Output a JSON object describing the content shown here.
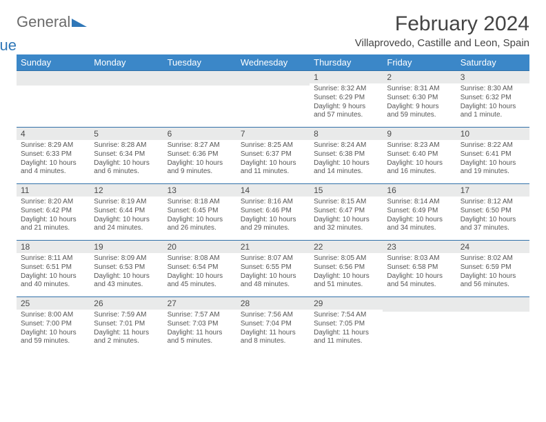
{
  "brand": {
    "part1": "General",
    "part2": "Blue"
  },
  "title": "February 2024",
  "location": "Villaprovedo, Castille and Leon, Spain",
  "colors": {
    "header_bg": "#3b87c8",
    "header_text": "#ffffff",
    "daynum_bg": "#e9eaea",
    "rule": "#2f6fa8",
    "body_text": "#555555",
    "title_text": "#444444",
    "brand_gray": "#6b6b6b",
    "brand_blue": "#2f77b8",
    "page_bg": "#ffffff"
  },
  "weekdays": [
    "Sunday",
    "Monday",
    "Tuesday",
    "Wednesday",
    "Thursday",
    "Friday",
    "Saturday"
  ],
  "weeks": [
    [
      null,
      null,
      null,
      null,
      {
        "n": "1",
        "sr": "Sunrise: 8:32 AM",
        "ss": "Sunset: 6:29 PM",
        "dl": "Daylight: 9 hours and 57 minutes."
      },
      {
        "n": "2",
        "sr": "Sunrise: 8:31 AM",
        "ss": "Sunset: 6:30 PM",
        "dl": "Daylight: 9 hours and 59 minutes."
      },
      {
        "n": "3",
        "sr": "Sunrise: 8:30 AM",
        "ss": "Sunset: 6:32 PM",
        "dl": "Daylight: 10 hours and 1 minute."
      }
    ],
    [
      {
        "n": "4",
        "sr": "Sunrise: 8:29 AM",
        "ss": "Sunset: 6:33 PM",
        "dl": "Daylight: 10 hours and 4 minutes."
      },
      {
        "n": "5",
        "sr": "Sunrise: 8:28 AM",
        "ss": "Sunset: 6:34 PM",
        "dl": "Daylight: 10 hours and 6 minutes."
      },
      {
        "n": "6",
        "sr": "Sunrise: 8:27 AM",
        "ss": "Sunset: 6:36 PM",
        "dl": "Daylight: 10 hours and 9 minutes."
      },
      {
        "n": "7",
        "sr": "Sunrise: 8:25 AM",
        "ss": "Sunset: 6:37 PM",
        "dl": "Daylight: 10 hours and 11 minutes."
      },
      {
        "n": "8",
        "sr": "Sunrise: 8:24 AM",
        "ss": "Sunset: 6:38 PM",
        "dl": "Daylight: 10 hours and 14 minutes."
      },
      {
        "n": "9",
        "sr": "Sunrise: 8:23 AM",
        "ss": "Sunset: 6:40 PM",
        "dl": "Daylight: 10 hours and 16 minutes."
      },
      {
        "n": "10",
        "sr": "Sunrise: 8:22 AM",
        "ss": "Sunset: 6:41 PM",
        "dl": "Daylight: 10 hours and 19 minutes."
      }
    ],
    [
      {
        "n": "11",
        "sr": "Sunrise: 8:20 AM",
        "ss": "Sunset: 6:42 PM",
        "dl": "Daylight: 10 hours and 21 minutes."
      },
      {
        "n": "12",
        "sr": "Sunrise: 8:19 AM",
        "ss": "Sunset: 6:44 PM",
        "dl": "Daylight: 10 hours and 24 minutes."
      },
      {
        "n": "13",
        "sr": "Sunrise: 8:18 AM",
        "ss": "Sunset: 6:45 PM",
        "dl": "Daylight: 10 hours and 26 minutes."
      },
      {
        "n": "14",
        "sr": "Sunrise: 8:16 AM",
        "ss": "Sunset: 6:46 PM",
        "dl": "Daylight: 10 hours and 29 minutes."
      },
      {
        "n": "15",
        "sr": "Sunrise: 8:15 AM",
        "ss": "Sunset: 6:47 PM",
        "dl": "Daylight: 10 hours and 32 minutes."
      },
      {
        "n": "16",
        "sr": "Sunrise: 8:14 AM",
        "ss": "Sunset: 6:49 PM",
        "dl": "Daylight: 10 hours and 34 minutes."
      },
      {
        "n": "17",
        "sr": "Sunrise: 8:12 AM",
        "ss": "Sunset: 6:50 PM",
        "dl": "Daylight: 10 hours and 37 minutes."
      }
    ],
    [
      {
        "n": "18",
        "sr": "Sunrise: 8:11 AM",
        "ss": "Sunset: 6:51 PM",
        "dl": "Daylight: 10 hours and 40 minutes."
      },
      {
        "n": "19",
        "sr": "Sunrise: 8:09 AM",
        "ss": "Sunset: 6:53 PM",
        "dl": "Daylight: 10 hours and 43 minutes."
      },
      {
        "n": "20",
        "sr": "Sunrise: 8:08 AM",
        "ss": "Sunset: 6:54 PM",
        "dl": "Daylight: 10 hours and 45 minutes."
      },
      {
        "n": "21",
        "sr": "Sunrise: 8:07 AM",
        "ss": "Sunset: 6:55 PM",
        "dl": "Daylight: 10 hours and 48 minutes."
      },
      {
        "n": "22",
        "sr": "Sunrise: 8:05 AM",
        "ss": "Sunset: 6:56 PM",
        "dl": "Daylight: 10 hours and 51 minutes."
      },
      {
        "n": "23",
        "sr": "Sunrise: 8:03 AM",
        "ss": "Sunset: 6:58 PM",
        "dl": "Daylight: 10 hours and 54 minutes."
      },
      {
        "n": "24",
        "sr": "Sunrise: 8:02 AM",
        "ss": "Sunset: 6:59 PM",
        "dl": "Daylight: 10 hours and 56 minutes."
      }
    ],
    [
      {
        "n": "25",
        "sr": "Sunrise: 8:00 AM",
        "ss": "Sunset: 7:00 PM",
        "dl": "Daylight: 10 hours and 59 minutes."
      },
      {
        "n": "26",
        "sr": "Sunrise: 7:59 AM",
        "ss": "Sunset: 7:01 PM",
        "dl": "Daylight: 11 hours and 2 minutes."
      },
      {
        "n": "27",
        "sr": "Sunrise: 7:57 AM",
        "ss": "Sunset: 7:03 PM",
        "dl": "Daylight: 11 hours and 5 minutes."
      },
      {
        "n": "28",
        "sr": "Sunrise: 7:56 AM",
        "ss": "Sunset: 7:04 PM",
        "dl": "Daylight: 11 hours and 8 minutes."
      },
      {
        "n": "29",
        "sr": "Sunrise: 7:54 AM",
        "ss": "Sunset: 7:05 PM",
        "dl": "Daylight: 11 hours and 11 minutes."
      },
      null,
      null
    ]
  ]
}
